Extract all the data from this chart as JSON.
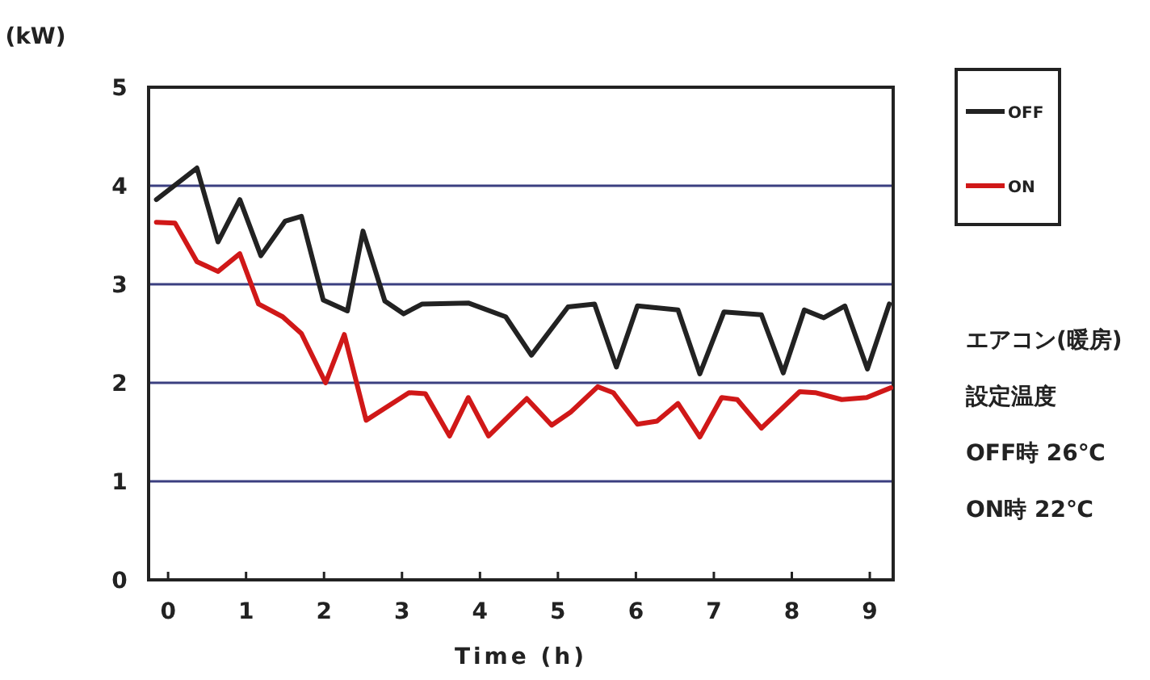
{
  "chart_data": {
    "type": "line",
    "xlabel": "Time (h)",
    "ylabel": "(kW)",
    "xlim": [
      -0.25,
      9.3
    ],
    "ylim": [
      0,
      5
    ],
    "xticks": [
      0,
      1,
      2,
      3,
      4,
      5,
      6,
      7,
      8,
      9
    ],
    "yticks": [
      0,
      1,
      2,
      3,
      4,
      5
    ],
    "grid": "y",
    "legend": "top right",
    "series": [
      {
        "name": "OFF",
        "color": "#222222",
        "x": [
          -0.15,
          0.37,
          0.64,
          0.92,
          1.19,
          1.5,
          1.71,
          1.99,
          2.3,
          2.5,
          2.78,
          3.02,
          3.26,
          3.85,
          4.33,
          4.66,
          5.13,
          5.47,
          5.75,
          6.02,
          6.54,
          6.82,
          7.13,
          7.61,
          7.89,
          8.16,
          8.41,
          8.68,
          8.97,
          9.25
        ],
        "values": [
          3.86,
          4.18,
          3.43,
          3.86,
          3.29,
          3.64,
          3.69,
          2.84,
          2.73,
          3.54,
          2.83,
          2.7,
          2.8,
          2.81,
          2.67,
          2.28,
          2.77,
          2.8,
          2.16,
          2.78,
          2.74,
          2.09,
          2.72,
          2.69,
          2.1,
          2.74,
          2.66,
          2.78,
          2.14,
          2.8
        ]
      },
      {
        "name": "ON",
        "color": "#d01818",
        "x": [
          -0.15,
          0.09,
          0.37,
          0.64,
          0.92,
          1.16,
          1.47,
          1.71,
          2.02,
          2.26,
          2.54,
          3.09,
          3.3,
          3.61,
          3.85,
          4.11,
          4.6,
          4.92,
          5.16,
          5.51,
          5.71,
          6.02,
          6.27,
          6.54,
          6.82,
          7.1,
          7.3,
          7.61,
          8.1,
          8.3,
          8.64,
          8.96,
          9.27
        ],
        "values": [
          3.63,
          3.62,
          3.23,
          3.13,
          3.31,
          2.8,
          2.67,
          2.5,
          2.0,
          2.49,
          1.62,
          1.9,
          1.89,
          1.46,
          1.85,
          1.46,
          1.84,
          1.57,
          1.7,
          1.96,
          1.9,
          1.58,
          1.61,
          1.79,
          1.45,
          1.85,
          1.83,
          1.54,
          1.91,
          1.9,
          1.83,
          1.85,
          1.95
        ]
      }
    ],
    "annotations": [
      "エアコン(暖房)",
      "設定温度",
      "OFF時 26℃",
      "ON時 22℃"
    ]
  }
}
